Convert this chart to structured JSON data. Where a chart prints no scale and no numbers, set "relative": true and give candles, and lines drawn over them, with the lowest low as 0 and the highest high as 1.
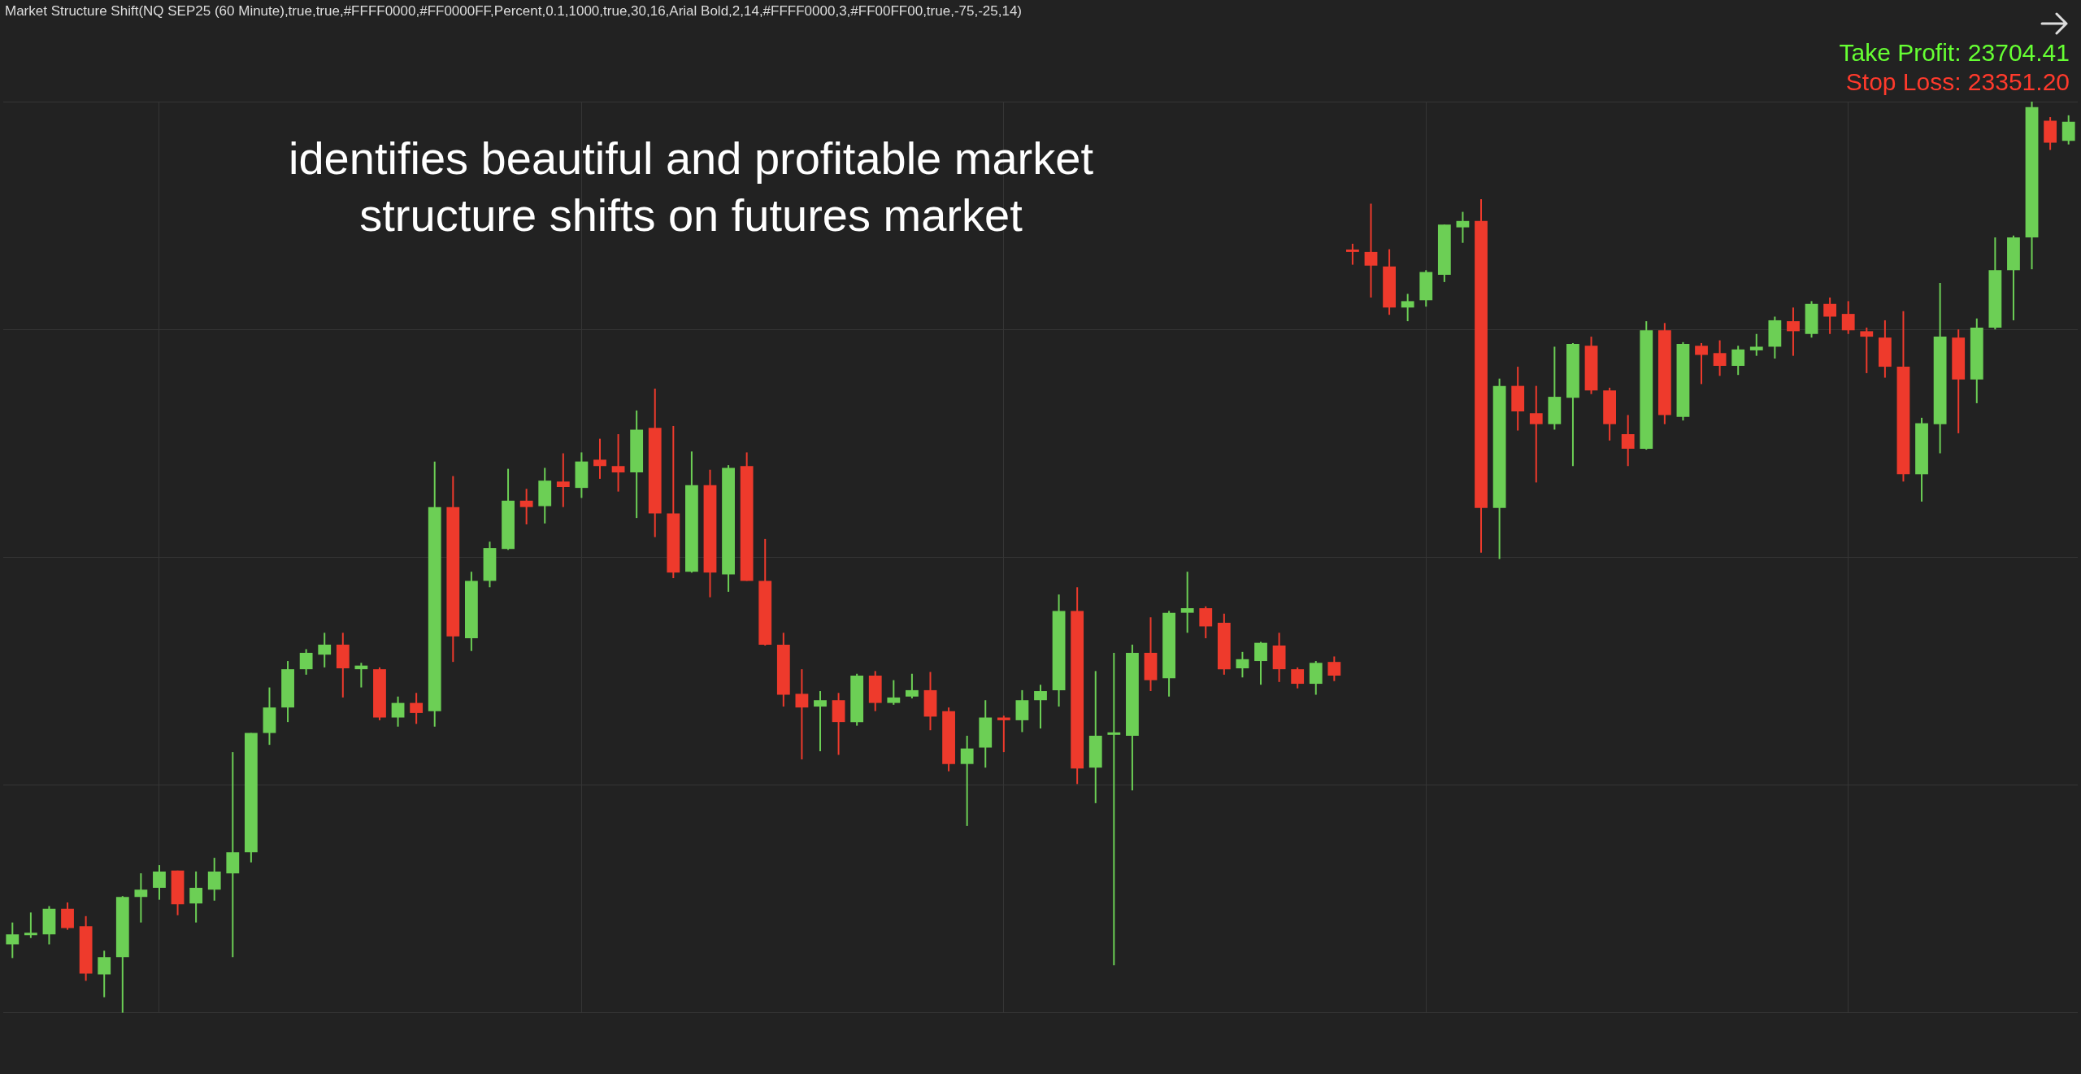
{
  "chart_data": {
    "type": "candlestick",
    "relative": true,
    "grid": true,
    "title": "Market Structure Shift(NQ SEP25 (60 Minute),true,true,#FFFF0000,#FF0000FF,Percent,0.1,1000,true,30,16,Arial Bold,2,14,#FFFF0000,3,#FF00FF00,true,-75,-25,14)",
    "annotations": [
      "identifies beautiful and profitable market structure shifts on futures market",
      "Take Profit: 23704.41",
      "Stop Loss: 23351.20"
    ],
    "categories": [
      null,
      null,
      null,
      null,
      null,
      null,
      null,
      null,
      null,
      null,
      null,
      null,
      null,
      null,
      null,
      null,
      null,
      null,
      null,
      null,
      null,
      null,
      null,
      null,
      null,
      null,
      null,
      null,
      null,
      null,
      null,
      null,
      null,
      null,
      null,
      null,
      null,
      null,
      null,
      null,
      null,
      null,
      null,
      null,
      null,
      null,
      null,
      null,
      null,
      null,
      null,
      null,
      null,
      null,
      null,
      null,
      null,
      null,
      null,
      null,
      null,
      null,
      null,
      null,
      null,
      null,
      null,
      null,
      null,
      null,
      null,
      null,
      null,
      null,
      null,
      null,
      null,
      null,
      null,
      null,
      null,
      null,
      null,
      null,
      null,
      null,
      null,
      null,
      null,
      null,
      null,
      null,
      null,
      null,
      null,
      null,
      null,
      null,
      null,
      null,
      null,
      null,
      null,
      null,
      null,
      null,
      null,
      null,
      null,
      null,
      null,
      null,
      null
    ],
    "ohlc": [
      [
        0.075,
        0.099,
        0.06,
        0.086
      ],
      [
        0.085,
        0.11,
        0.082,
        0.085
      ],
      [
        0.086,
        0.117,
        0.075,
        0.114
      ],
      [
        0.114,
        0.121,
        0.091,
        0.093
      ],
      [
        0.095,
        0.106,
        0.035,
        0.043
      ],
      [
        0.042,
        0.068,
        0.017,
        0.061
      ],
      [
        0.061,
        0.128,
        0,
        0.127
      ],
      [
        0.127,
        0.153,
        0.099,
        0.135
      ],
      [
        0.137,
        0.162,
        0.124,
        0.155
      ],
      [
        0.156,
        0.156,
        0.107,
        0.119
      ],
      [
        0.12,
        0.155,
        0.099,
        0.137
      ],
      [
        0.135,
        0.17,
        0.123,
        0.155
      ],
      [
        0.153,
        0.286,
        0.061,
        0.176
      ],
      [
        0.176,
        0.307,
        0.165,
        0.307
      ],
      [
        0.307,
        0.357,
        0.294,
        0.335
      ],
      [
        0.335,
        0.386,
        0.319,
        0.377
      ],
      [
        0.377,
        0.399,
        0.371,
        0.395
      ],
      [
        0.393,
        0.417,
        0.379,
        0.404
      ],
      [
        0.404,
        0.417,
        0.346,
        0.378
      ],
      [
        0.377,
        0.384,
        0.357,
        0.381
      ],
      [
        0.377,
        0.379,
        0.321,
        0.324
      ],
      [
        0.324,
        0.347,
        0.314,
        0.34
      ],
      [
        0.34,
        0.351,
        0.317,
        0.329
      ],
      [
        0.331,
        0.605,
        0.314,
        0.555
      ],
      [
        0.555,
        0.589,
        0.385,
        0.413
      ],
      [
        0.411,
        0.484,
        0.397,
        0.474
      ],
      [
        0.474,
        0.517,
        0.467,
        0.51
      ],
      [
        0.509,
        0.597,
        0.508,
        0.562
      ],
      [
        0.562,
        0.575,
        0.536,
        0.555
      ],
      [
        0.556,
        0.598,
        0.537,
        0.584
      ],
      [
        0.583,
        0.614,
        0.555,
        0.577
      ],
      [
        0.576,
        0.615,
        0.565,
        0.605
      ],
      [
        0.607,
        0.63,
        0.586,
        0.6
      ],
      [
        0.6,
        0.635,
        0.572,
        0.593
      ],
      [
        0.593,
        0.661,
        0.543,
        0.64
      ],
      [
        0.642,
        0.685,
        0.522,
        0.548
      ],
      [
        0.548,
        0.644,
        0.477,
        0.483
      ],
      [
        0.484,
        0.616,
        0.483,
        0.579
      ],
      [
        0.579,
        0.596,
        0.456,
        0.483
      ],
      [
        0.481,
        0.601,
        0.462,
        0.598
      ],
      [
        0.6,
        0.615,
        0.474,
        0.474
      ],
      [
        0.474,
        0.52,
        0.403,
        0.404
      ],
      [
        0.404,
        0.417,
        0.336,
        0.349
      ],
      [
        0.35,
        0.377,
        0.278,
        0.335
      ],
      [
        0.336,
        0.353,
        0.287,
        0.343
      ],
      [
        0.343,
        0.351,
        0.283,
        0.319
      ],
      [
        0.319,
        0.372,
        0.315,
        0.37
      ],
      [
        0.37,
        0.375,
        0.331,
        0.34
      ],
      [
        0.34,
        0.365,
        0.338,
        0.346
      ],
      [
        0.347,
        0.372,
        0.345,
        0.354
      ],
      [
        0.354,
        0.374,
        0.31,
        0.325
      ],
      [
        0.331,
        0.335,
        0.265,
        0.273
      ],
      [
        0.273,
        0.304,
        0.205,
        0.29
      ],
      [
        0.291,
        0.343,
        0.269,
        0.324
      ],
      [
        0.324,
        0.326,
        0.286,
        0.321
      ],
      [
        0.321,
        0.354,
        0.308,
        0.343
      ],
      [
        0.343,
        0.36,
        0.312,
        0.353
      ],
      [
        0.354,
        0.459,
        0.336,
        0.441
      ],
      [
        0.441,
        0.467,
        0.251,
        0.268
      ],
      [
        0.269,
        0.375,
        0.23,
        0.304
      ],
      [
        0.305,
        0.395,
        0.052,
        0.305
      ],
      [
        0.304,
        0.404,
        0.244,
        0.395
      ],
      [
        0.395,
        0.434,
        0.353,
        0.365
      ],
      [
        0.367,
        0.441,
        0.347,
        0.439
      ],
      [
        0.439,
        0.484,
        0.417,
        0.444
      ],
      [
        0.444,
        0.446,
        0.411,
        0.424
      ],
      [
        0.428,
        0.438,
        0.371,
        0.377
      ],
      [
        0.378,
        0.396,
        0.368,
        0.388
      ],
      [
        0.386,
        0.407,
        0.36,
        0.406
      ],
      [
        0.403,
        0.417,
        0.363,
        0.377
      ],
      [
        0.377,
        0.379,
        0.356,
        0.361
      ],
      [
        0.361,
        0.386,
        0.349,
        0.384
      ],
      [
        0.385,
        0.391,
        0.364,
        0.37
      ],
      [
        0.835,
        0.844,
        0.821,
        0.835
      ],
      [
        0.835,
        0.888,
        0.785,
        0.82
      ],
      [
        0.819,
        0.838,
        0.766,
        0.774
      ],
      [
        0.774,
        0.789,
        0.759,
        0.781
      ],
      [
        0.782,
        0.815,
        0.775,
        0.813
      ],
      [
        0.81,
        0.865,
        0.802,
        0.865
      ],
      [
        0.862,
        0.879,
        0.845,
        0.869
      ],
      [
        0.869,
        0.893,
        0.505,
        0.554
      ],
      [
        0.554,
        0.696,
        0.498,
        0.688
      ],
      [
        0.688,
        0.709,
        0.639,
        0.66
      ],
      [
        0.658,
        0.688,
        0.582,
        0.646
      ],
      [
        0.646,
        0.731,
        0.64,
        0.676
      ],
      [
        0.675,
        0.735,
        0.6,
        0.734
      ],
      [
        0.732,
        0.742,
        0.679,
        0.683
      ],
      [
        0.683,
        0.686,
        0.628,
        0.646
      ],
      [
        0.635,
        0.656,
        0.6,
        0.619
      ],
      [
        0.619,
        0.759,
        0.618,
        0.749
      ],
      [
        0.749,
        0.757,
        0.646,
        0.656
      ],
      [
        0.654,
        0.736,
        0.65,
        0.734
      ],
      [
        0.732,
        0.735,
        0.69,
        0.722
      ],
      [
        0.724,
        0.738,
        0.699,
        0.71
      ],
      [
        0.71,
        0.732,
        0.7,
        0.728
      ],
      [
        0.727,
        0.745,
        0.721,
        0.731
      ],
      [
        0.731,
        0.764,
        0.718,
        0.76
      ],
      [
        0.759,
        0.774,
        0.721,
        0.748
      ],
      [
        0.745,
        0.781,
        0.741,
        0.778
      ],
      [
        0.778,
        0.785,
        0.745,
        0.764
      ],
      [
        0.767,
        0.781,
        0.745,
        0.749
      ],
      [
        0.748,
        0.752,
        0.702,
        0.742
      ],
      [
        0.741,
        0.76,
        0.697,
        0.709
      ],
      [
        0.709,
        0.77,
        0.583,
        0.591
      ],
      [
        0.591,
        0.653,
        0.561,
        0.647
      ],
      [
        0.646,
        0.801,
        0.614,
        0.742
      ],
      [
        0.741,
        0.75,
        0.636,
        0.695
      ],
      [
        0.695,
        0.762,
        0.669,
        0.752
      ],
      [
        0.752,
        0.851,
        0.75,
        0.815
      ],
      [
        0.815,
        0.853,
        0.76,
        0.851
      ],
      [
        0.851,
        1,
        0.816,
        0.994
      ],
      [
        0.979,
        0.983,
        0.947,
        0.955
      ],
      [
        0.957,
        0.985,
        0.953,
        0.978
      ]
    ],
    "colors": [
      "#6ccf55",
      "#6ccf55",
      "#6ccf55",
      "#ee3a2c",
      "#ee3a2c",
      "#6ccf55",
      "#6ccf55",
      "#6ccf55",
      "#6ccf55",
      "#ee3a2c",
      "#6ccf55",
      "#6ccf55",
      "#6ccf55",
      "#6ccf55",
      "#6ccf55",
      "#6ccf55",
      "#6ccf55",
      "#6ccf55",
      "#ee3a2c",
      "#6ccf55",
      "#ee3a2c",
      "#6ccf55",
      "#ee3a2c",
      "#6ccf55",
      "#ee3a2c",
      "#6ccf55",
      "#6ccf55",
      "#6ccf55",
      "#ee3a2c",
      "#6ccf55",
      "#ee3a2c",
      "#6ccf55",
      "#ee3a2c",
      "#ee3a2c",
      "#6ccf55",
      "#ee3a2c",
      "#ee3a2c",
      "#6ccf55",
      "#ee3a2c",
      "#6ccf55",
      "#ee3a2c",
      "#ee3a2c",
      "#ee3a2c",
      "#ee3a2c",
      "#6ccf55",
      "#ee3a2c",
      "#6ccf55",
      "#ee3a2c",
      "#6ccf55",
      "#6ccf55",
      "#ee3a2c",
      "#ee3a2c",
      "#6ccf55",
      "#6ccf55",
      "#ee3a2c",
      "#6ccf55",
      "#6ccf55",
      "#6ccf55",
      "#ee3a2c",
      "#6ccf55",
      "#6ccf55",
      "#6ccf55",
      "#ee3a2c",
      "#6ccf55",
      "#6ccf55",
      "#ee3a2c",
      "#ee3a2c",
      "#6ccf55",
      "#6ccf55",
      "#ee3a2c",
      "#ee3a2c",
      "#6ccf55",
      "#ee3a2c",
      "#ee3a2c",
      "#ee3a2c",
      "#ee3a2c",
      "#6ccf55",
      "#6ccf55",
      "#6ccf55",
      "#6ccf55",
      "#ee3a2c",
      "#6ccf55",
      "#ee3a2c",
      "#ee3a2c",
      "#6ccf55",
      "#6ccf55",
      "#ee3a2c",
      "#ee3a2c",
      "#ee3a2c",
      "#6ccf55",
      "#ee3a2c",
      "#6ccf55",
      "#ee3a2c",
      "#ee3a2c",
      "#6ccf55",
      "#6ccf55",
      "#6ccf55",
      "#ee3a2c",
      "#6ccf55",
      "#ee3a2c",
      "#ee3a2c",
      "#ee3a2c",
      "#ee3a2c",
      "#ee3a2c",
      "#6ccf55",
      "#6ccf55",
      "#ee3a2c",
      "#6ccf55",
      "#6ccf55",
      "#6ccf55",
      "#6ccf55",
      "#ee3a2c",
      "#6ccf55"
    ]
  }
}
